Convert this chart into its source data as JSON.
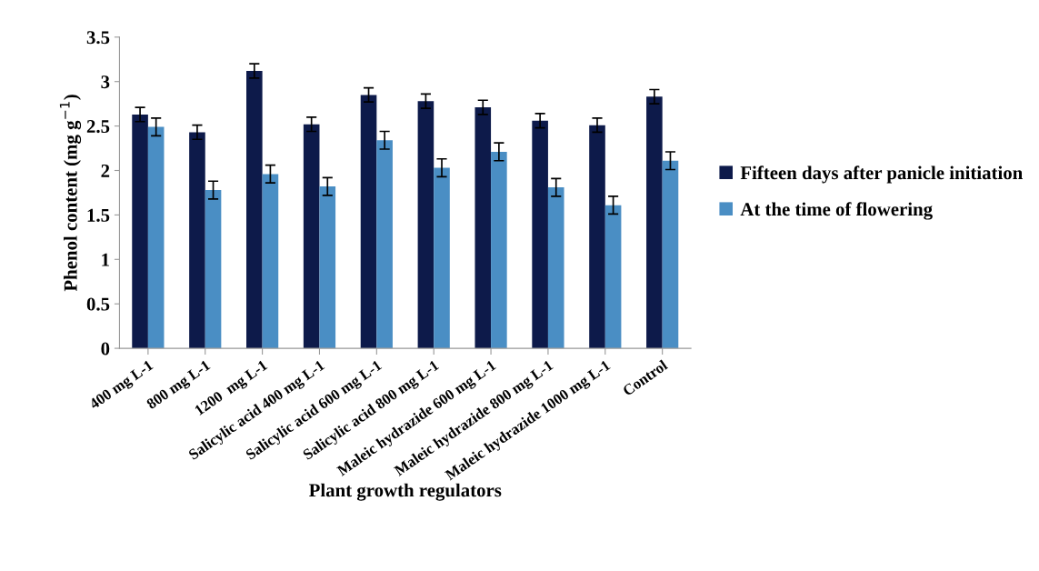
{
  "chart_data": {
    "type": "bar",
    "xlabel": "Plant growth regulators",
    "ylabel": "Phenol content (mg g$^{−1}$)",
    "categories": [
      "400 mg L-1",
      "800 mg L-1",
      "1200  mg L-1",
      "Salicylic acid 400 mg L-1",
      "Salicylic acid 600 mg L-1",
      "Salicylic acid 800 mg L-1",
      "Maleic hydrazide 600 mg L-1",
      "Maleic hydrazide 800 mg L-1",
      "Maleic hydrazide 1000 mg L-1",
      "Control"
    ],
    "series": [
      {
        "name": "Fifteen days after panicle initiation",
        "color": "#0d1a4a",
        "values": [
          2.63,
          2.43,
          3.12,
          2.52,
          2.85,
          2.78,
          2.71,
          2.56,
          2.51,
          2.83
        ],
        "errors": [
          0.08,
          0.08,
          0.08,
          0.08,
          0.08,
          0.08,
          0.08,
          0.08,
          0.08,
          0.08
        ]
      },
      {
        "name": "At the time of flowering",
        "color": "#4a8ec4",
        "values": [
          2.49,
          1.78,
          1.96,
          1.82,
          2.34,
          2.03,
          2.21,
          1.81,
          1.61,
          2.11
        ],
        "errors": [
          0.1,
          0.1,
          0.1,
          0.1,
          0.1,
          0.1,
          0.1,
          0.1,
          0.1,
          0.1
        ]
      }
    ],
    "ylim": [
      0,
      3.5
    ],
    "yticks": [
      0,
      0.5,
      1,
      1.5,
      2,
      2.5,
      3,
      3.5
    ],
    "grid": false,
    "legend": "right"
  }
}
